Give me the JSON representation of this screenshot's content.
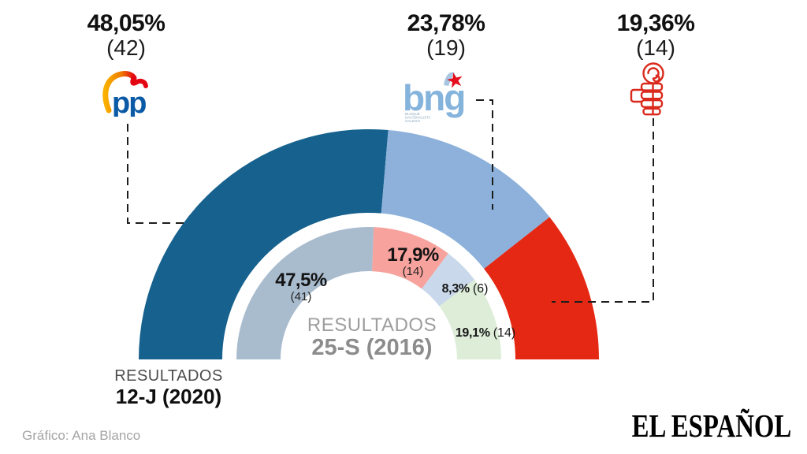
{
  "callouts": [
    {
      "party": "PP",
      "pct_label": "48,05%",
      "seats_label": "(42)"
    },
    {
      "party": "BNG",
      "pct_label": "23,78%",
      "seats_label": "(19)"
    },
    {
      "party": "PSOE",
      "pct_label": "19,36%",
      "seats_label": "(14)"
    }
  ],
  "logos": {
    "pp_text": "pp",
    "bng_text": "bng",
    "bng_subtext": [
      "BLOQUE",
      "NACIONALISTA",
      "GALEGO"
    ],
    "psoe_icon": "fist-and-rose"
  },
  "chart_data": {
    "type": "semicircle-donut",
    "orientation": "half-top",
    "rings": [
      {
        "id": "2020",
        "caption_line1": "RESULTADOS",
        "caption_line2": "12-J (2020)",
        "segments": [
          {
            "label": "PP",
            "pct": 48.05,
            "pct_label": "48,05%",
            "seats": 42,
            "seats_label": "(42)",
            "color": "#16618e"
          },
          {
            "label": "BNG",
            "pct": 23.78,
            "pct_label": "23,78%",
            "seats": 19,
            "seats_label": "(19)",
            "color": "#8db1da"
          },
          {
            "label": "PSOE",
            "pct": 19.36,
            "pct_label": "19,36%",
            "seats": 14,
            "seats_label": "(14)",
            "color": "#e52813"
          }
        ]
      },
      {
        "id": "2016",
        "caption_line1": "RESULTADOS",
        "caption_line2": "25-S (2016)",
        "segments": [
          {
            "pct": 47.5,
            "pct_label": "47,5%",
            "seats": 41,
            "seats_label": "(41)",
            "color": "#a9bcce"
          },
          {
            "pct": 17.9,
            "pct_label": "17,9%",
            "seats": 14,
            "seats_label": "(14)",
            "color": "#f7a29c"
          },
          {
            "pct": 8.3,
            "pct_label": "8,3%",
            "seats": 6,
            "seats_label": "(6)",
            "color": "#c9d8ea"
          },
          {
            "pct": 19.1,
            "pct_label": "19,1%",
            "seats": 14,
            "seats_label": "(14)",
            "color": "#ddedd8"
          }
        ]
      }
    ]
  },
  "footer": {
    "credit": "Gráfico: Ana Blanco",
    "brand": "EL ESPAÑOL"
  }
}
